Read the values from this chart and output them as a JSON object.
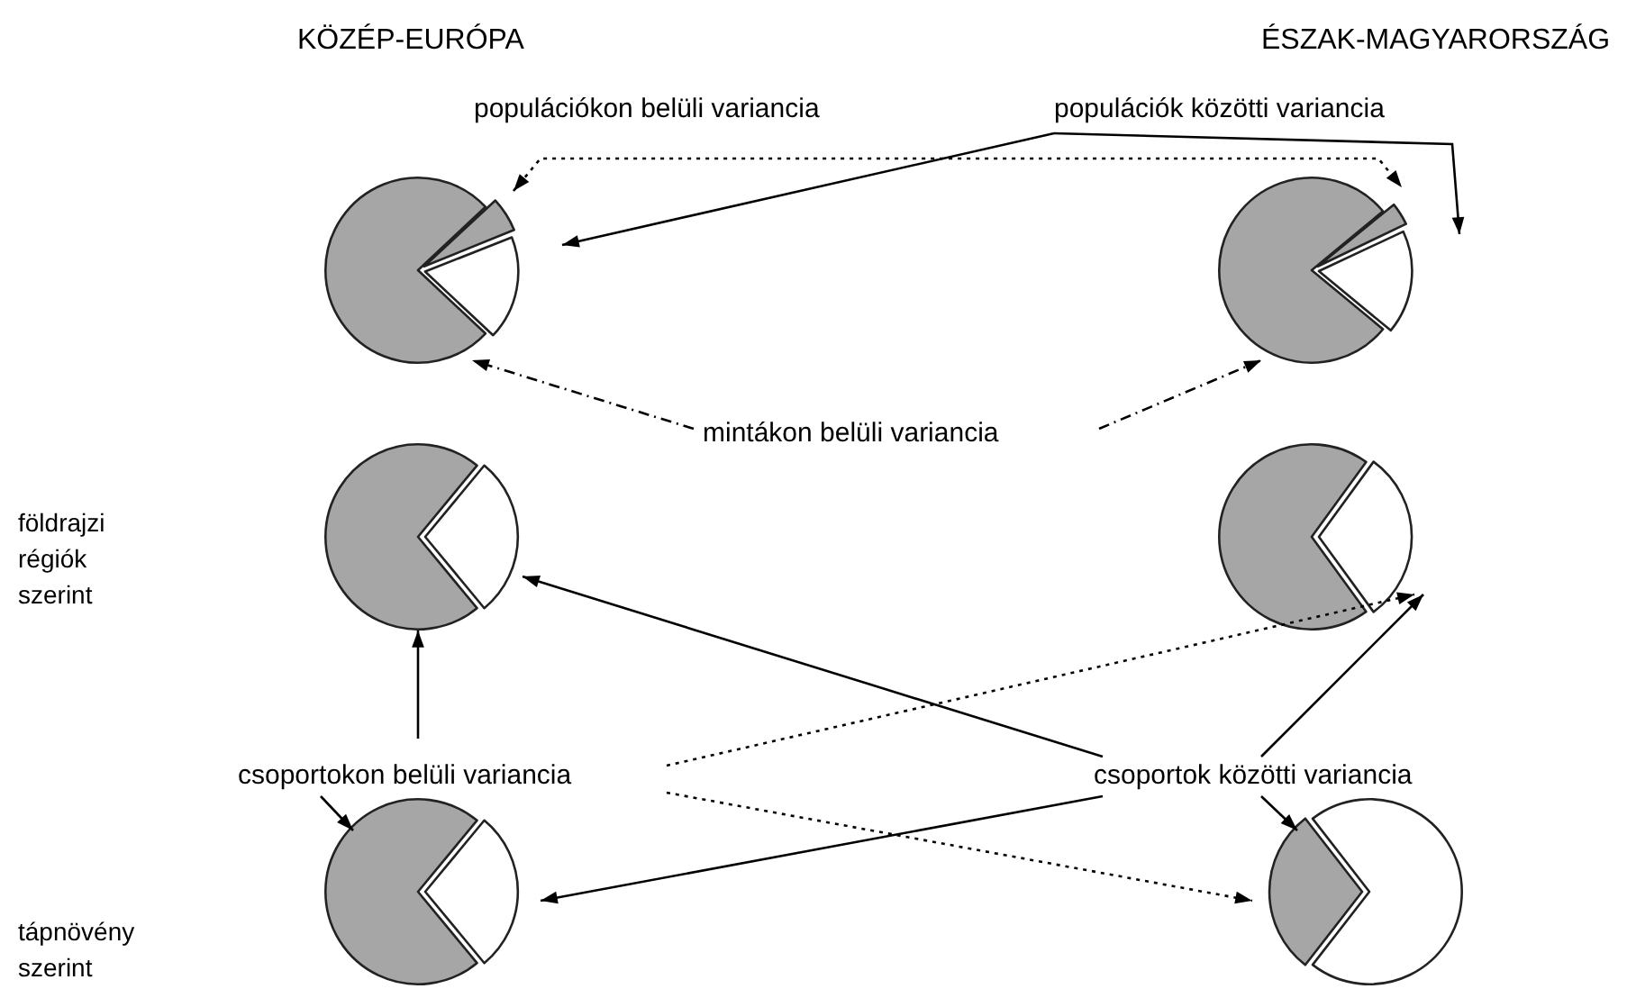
{
  "chart_data": [
    {
      "type": "pie",
      "title": "KÖZÉP-EURÓPA",
      "categories": [
        null,
        null,
        null
      ],
      "values": [
        6,
        18,
        76
      ],
      "colors": [
        "#a6a6a6",
        "#ffffff",
        "#a6a6a6"
      ],
      "annotations": [
        "populációkon belüli variancia",
        "populációk közötti variancia",
        "mintákon belüli variancia"
      ]
    },
    {
      "type": "pie",
      "title": "ÉSZAK-MAGYARORSZÁG",
      "categories": [
        null,
        null,
        null
      ],
      "values": [
        4,
        18,
        78
      ],
      "colors": [
        "#a6a6a6",
        "#ffffff",
        "#a6a6a6"
      ]
    },
    {
      "type": "pie",
      "ylabel": "földrajzi régiók szerint",
      "categories": [
        null,
        null
      ],
      "values": [
        28,
        72
      ],
      "colors": [
        "#ffffff",
        "#a6a6a6"
      ],
      "annotations": [
        "csoportokon belüli variancia",
        "csoportok közötti variancia"
      ]
    },
    {
      "type": "pie",
      "categories": [
        null,
        null
      ],
      "values": [
        30,
        70
      ],
      "colors": [
        "#ffffff",
        "#a6a6a6"
      ]
    },
    {
      "type": "pie",
      "ylabel": "tápnövény szerint",
      "categories": [
        null,
        null
      ],
      "values": [
        28,
        72
      ],
      "colors": [
        "#ffffff",
        "#a6a6a6"
      ]
    },
    {
      "type": "pie",
      "categories": [
        null,
        null
      ],
      "values": [
        29,
        71
      ],
      "colors": [
        "#a6a6a6",
        "#ffffff"
      ]
    }
  ]
}
